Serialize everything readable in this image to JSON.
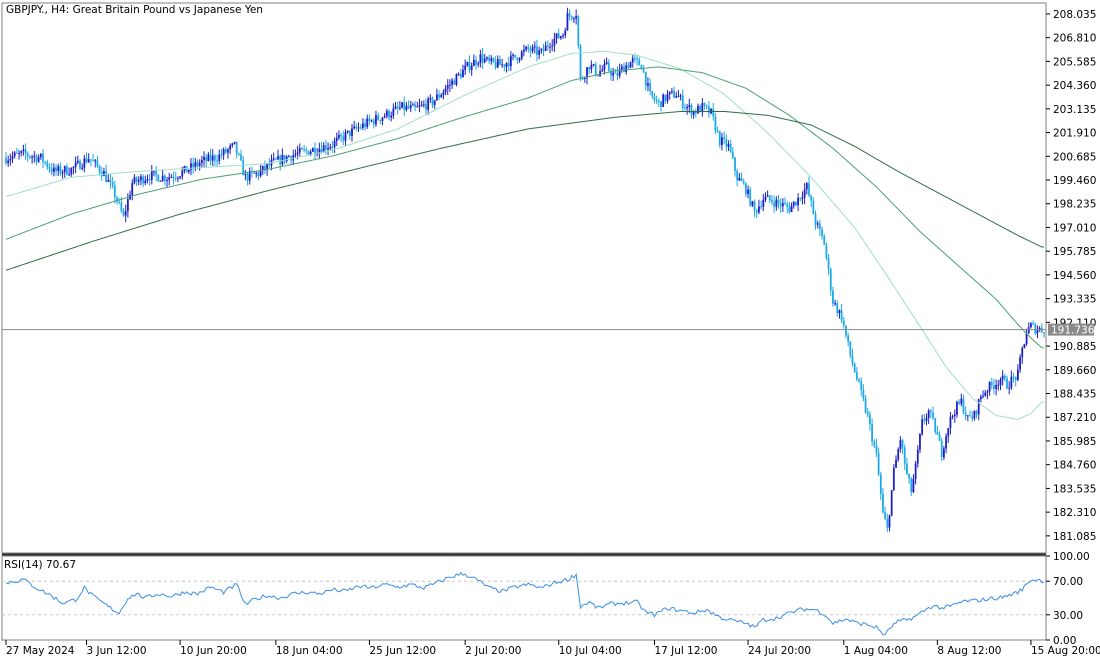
{
  "header": {
    "symbol_line": "GBPJPY., H4:  Great Britain Pound vs Japanese Yen"
  },
  "colors": {
    "bull": "#1e1ec8",
    "bear": "#1ea8e6",
    "ma_fast": "#9fe0c4",
    "ma_mid": "#4aa072",
    "ma_slow": "#2e6e4a",
    "rsi": "#3a8ee6",
    "grid": "#c8c8c8",
    "frame": "#808080",
    "text": "#000000",
    "price_tag_bg": "#8a8a8a"
  },
  "chart_data": [
    {
      "type": "candlestick",
      "symbol": "GBPJPY.",
      "timeframe": "H4",
      "title": "Great Britain Pound vs Japanese Yen",
      "current_price": 191.736,
      "current_price_label": "191.736",
      "ylim": [
        180.2,
        208.6
      ],
      "y_ticks": [
        {
          "v": 208.035,
          "label": "208.035"
        },
        {
          "v": 206.81,
          "label": "206.810"
        },
        {
          "v": 205.585,
          "label": "205.585"
        },
        {
          "v": 204.36,
          "label": "204.360"
        },
        {
          "v": 203.135,
          "label": "203.135"
        },
        {
          "v": 201.91,
          "label": "201.910"
        },
        {
          "v": 200.685,
          "label": "200.685"
        },
        {
          "v": 199.46,
          "label": "199.460"
        },
        {
          "v": 198.235,
          "label": "198.235"
        },
        {
          "v": 197.01,
          "label": "197.010"
        },
        {
          "v": 195.785,
          "label": "195.785"
        },
        {
          "v": 194.56,
          "label": "194.560"
        },
        {
          "v": 193.335,
          "label": "193.335"
        },
        {
          "v": 192.11,
          "label": "192.110"
        },
        {
          "v": 190.885,
          "label": "190.885"
        },
        {
          "v": 189.66,
          "label": "189.660"
        },
        {
          "v": 188.435,
          "label": "188.435"
        },
        {
          "v": 187.21,
          "label": "187.210"
        },
        {
          "v": 185.985,
          "label": "185.985"
        },
        {
          "v": 184.76,
          "label": "184.760"
        },
        {
          "v": 183.535,
          "label": "183.535"
        },
        {
          "v": 182.31,
          "label": "182.310"
        },
        {
          "v": 181.085,
          "label": "181.085"
        }
      ],
      "x_labels": [
        {
          "i": 0,
          "label": "27 May 2024"
        },
        {
          "i": 37,
          "label": "3 Jun 12:00"
        },
        {
          "i": 80,
          "label": "10 Jun 20:00"
        },
        {
          "i": 124,
          "label": "18 Jun 04:00"
        },
        {
          "i": 167,
          "label": "25 Jun 12:00"
        },
        {
          "i": 211,
          "label": "2 Jul 20:00"
        },
        {
          "i": 254,
          "label": "10 Jul 04:00"
        },
        {
          "i": 298,
          "label": "17 Jul 12:00"
        },
        {
          "i": 341,
          "label": "24 Jul 20:00"
        },
        {
          "i": 385,
          "label": "1 Aug 04:00"
        },
        {
          "i": 428,
          "label": "8 Aug 12:00"
        },
        {
          "i": 471,
          "label": "15 Aug 20:00"
        }
      ],
      "close_path": [
        [
          0,
          200.6
        ],
        [
          8,
          200.8
        ],
        [
          16,
          200.6
        ],
        [
          22,
          199.9
        ],
        [
          30,
          200.0
        ],
        [
          38,
          200.6
        ],
        [
          45,
          199.8
        ],
        [
          50,
          198.7
        ],
        [
          54,
          197.5
        ],
        [
          58,
          199.3
        ],
        [
          66,
          199.7
        ],
        [
          74,
          199.6
        ],
        [
          82,
          199.9
        ],
        [
          90,
          200.4
        ],
        [
          98,
          200.7
        ],
        [
          105,
          201.2
        ],
        [
          110,
          199.6
        ],
        [
          116,
          199.8
        ],
        [
          122,
          200.3
        ],
        [
          130,
          200.7
        ],
        [
          140,
          201.0
        ],
        [
          150,
          201.3
        ],
        [
          158,
          201.9
        ],
        [
          166,
          202.4
        ],
        [
          174,
          202.8
        ],
        [
          182,
          203.2
        ],
        [
          188,
          203.1
        ],
        [
          196,
          203.5
        ],
        [
          204,
          204.4
        ],
        [
          212,
          205.3
        ],
        [
          218,
          205.8
        ],
        [
          222,
          205.5
        ],
        [
          228,
          205.4
        ],
        [
          234,
          205.8
        ],
        [
          240,
          206.2
        ],
        [
          246,
          206.0
        ],
        [
          250,
          206.6
        ],
        [
          256,
          207.0
        ],
        [
          258,
          207.9
        ],
        [
          262,
          208.1
        ],
        [
          264,
          204.6
        ],
        [
          268,
          205.4
        ],
        [
          272,
          205.0
        ],
        [
          276,
          205.3
        ],
        [
          280,
          204.8
        ],
        [
          284,
          205.3
        ],
        [
          288,
          205.6
        ],
        [
          292,
          205.4
        ],
        [
          296,
          203.8
        ],
        [
          300,
          203.4
        ],
        [
          304,
          203.8
        ],
        [
          308,
          203.9
        ],
        [
          312,
          203.3
        ],
        [
          316,
          203.0
        ],
        [
          320,
          203.2
        ],
        [
          324,
          202.9
        ],
        [
          328,
          201.5
        ],
        [
          332,
          201.2
        ],
        [
          336,
          199.6
        ],
        [
          340,
          199.0
        ],
        [
          344,
          197.8
        ],
        [
          348,
          198.5
        ],
        [
          352,
          198.4
        ],
        [
          356,
          198.2
        ],
        [
          360,
          198.0
        ],
        [
          364,
          198.5
        ],
        [
          368,
          199.1
        ],
        [
          372,
          197.3
        ],
        [
          376,
          196.2
        ],
        [
          380,
          193.2
        ],
        [
          384,
          192.4
        ],
        [
          388,
          190.4
        ],
        [
          392,
          188.8
        ],
        [
          396,
          187.2
        ],
        [
          400,
          185.2
        ],
        [
          403,
          182.2
        ],
        [
          405,
          181.4
        ],
        [
          408,
          184.4
        ],
        [
          411,
          186.1
        ],
        [
          414,
          184.2
        ],
        [
          416,
          183.4
        ],
        [
          418,
          184.6
        ],
        [
          421,
          186.9
        ],
        [
          424,
          187.5
        ],
        [
          427,
          186.6
        ],
        [
          430,
          185.4
        ],
        [
          433,
          186.8
        ],
        [
          436,
          187.6
        ],
        [
          439,
          188.0
        ],
        [
          442,
          187.1
        ],
        [
          445,
          187.3
        ],
        [
          448,
          188.3
        ],
        [
          451,
          188.7
        ],
        [
          454,
          188.9
        ],
        [
          457,
          189.2
        ],
        [
          460,
          188.9
        ],
        [
          463,
          189.2
        ],
        [
          465,
          189.4
        ],
        [
          467,
          190.7
        ],
        [
          469,
          191.6
        ],
        [
          471,
          191.9
        ],
        [
          473,
          191.8
        ],
        [
          476,
          191.736
        ]
      ],
      "moving_averages": [
        {
          "role": "fast",
          "points": [
            [
              0,
              198.6
            ],
            [
              30,
              199.6
            ],
            [
              60,
              199.9
            ],
            [
              90,
              200.1
            ],
            [
              120,
              200.3
            ],
            [
              150,
              201.0
            ],
            [
              180,
              202.1
            ],
            [
              210,
              203.8
            ],
            [
              240,
              205.3
            ],
            [
              260,
              206.0
            ],
            [
              275,
              206.1
            ],
            [
              290,
              205.9
            ],
            [
              310,
              205.2
            ],
            [
              330,
              203.9
            ],
            [
              350,
              201.9
            ],
            [
              370,
              199.6
            ],
            [
              390,
              197.0
            ],
            [
              405,
              194.5
            ],
            [
              420,
              191.9
            ],
            [
              432,
              189.8
            ],
            [
              444,
              188.2
            ],
            [
              455,
              187.3
            ],
            [
              465,
              187.1
            ],
            [
              471,
              187.4
            ],
            [
              476,
              188.0
            ]
          ]
        },
        {
          "role": "mid",
          "points": [
            [
              0,
              196.4
            ],
            [
              30,
              197.7
            ],
            [
              60,
              198.7
            ],
            [
              90,
              199.5
            ],
            [
              120,
              200.0
            ],
            [
              150,
              200.7
            ],
            [
              180,
              201.6
            ],
            [
              210,
              202.7
            ],
            [
              240,
              203.7
            ],
            [
              260,
              204.6
            ],
            [
              280,
              205.1
            ],
            [
              300,
              205.3
            ],
            [
              320,
              205.0
            ],
            [
              340,
              204.2
            ],
            [
              360,
              202.8
            ],
            [
              380,
              201.1
            ],
            [
              400,
              199.1
            ],
            [
              420,
              196.8
            ],
            [
              440,
              194.8
            ],
            [
              455,
              193.3
            ],
            [
              465,
              192.0
            ],
            [
              471,
              191.3
            ],
            [
              476,
              190.8
            ]
          ]
        },
        {
          "role": "slow",
          "points": [
            [
              0,
              194.8
            ],
            [
              40,
              196.3
            ],
            [
              80,
              197.7
            ],
            [
              120,
              198.9
            ],
            [
              160,
              200.0
            ],
            [
              200,
              201.1
            ],
            [
              240,
              202.1
            ],
            [
              280,
              202.7
            ],
            [
              310,
              203.0
            ],
            [
              330,
              203.0
            ],
            [
              350,
              202.8
            ],
            [
              370,
              202.3
            ],
            [
              390,
              201.2
            ],
            [
              410,
              199.9
            ],
            [
              430,
              198.7
            ],
            [
              450,
              197.5
            ],
            [
              465,
              196.6
            ],
            [
              476,
              196.0
            ]
          ]
        }
      ]
    },
    {
      "type": "line",
      "name": "RSI(14)",
      "panel_label": "RSI(14) 70.67",
      "ylim": [
        0,
        100
      ],
      "y_ticks": [
        {
          "v": 100,
          "label": "100.00"
        },
        {
          "v": 70,
          "label": "70.00"
        },
        {
          "v": 30,
          "label": "30.00"
        },
        {
          "v": 0,
          "label": "0.00"
        }
      ],
      "levels": [
        70,
        30
      ],
      "points": [
        [
          0,
          68
        ],
        [
          8,
          72
        ],
        [
          14,
          62
        ],
        [
          20,
          54
        ],
        [
          26,
          44
        ],
        [
          32,
          48
        ],
        [
          36,
          62
        ],
        [
          40,
          52
        ],
        [
          44,
          45
        ],
        [
          48,
          38
        ],
        [
          52,
          32
        ],
        [
          56,
          50
        ],
        [
          60,
          55
        ],
        [
          64,
          50
        ],
        [
          70,
          55
        ],
        [
          76,
          52
        ],
        [
          82,
          57
        ],
        [
          88,
          55
        ],
        [
          94,
          63
        ],
        [
          100,
          57
        ],
        [
          106,
          66
        ],
        [
          110,
          42
        ],
        [
          114,
          48
        ],
        [
          120,
          53
        ],
        [
          126,
          50
        ],
        [
          132,
          55
        ],
        [
          138,
          57
        ],
        [
          144,
          55
        ],
        [
          150,
          60
        ],
        [
          156,
          58
        ],
        [
          162,
          64
        ],
        [
          168,
          62
        ],
        [
          174,
          66
        ],
        [
          180,
          63
        ],
        [
          186,
          66
        ],
        [
          192,
          62
        ],
        [
          198,
          68
        ],
        [
          204,
          75
        ],
        [
          210,
          79
        ],
        [
          214,
          75
        ],
        [
          218,
          69
        ],
        [
          222,
          62
        ],
        [
          228,
          58
        ],
        [
          234,
          63
        ],
        [
          240,
          66
        ],
        [
          246,
          62
        ],
        [
          252,
          68
        ],
        [
          258,
          72
        ],
        [
          262,
          78
        ],
        [
          264,
          40
        ],
        [
          268,
          45
        ],
        [
          272,
          38
        ],
        [
          278,
          43
        ],
        [
          284,
          44
        ],
        [
          290,
          45
        ],
        [
          294,
          33
        ],
        [
          298,
          30
        ],
        [
          304,
          38
        ],
        [
          310,
          35
        ],
        [
          316,
          32
        ],
        [
          322,
          36
        ],
        [
          328,
          27
        ],
        [
          334,
          23
        ],
        [
          340,
          20
        ],
        [
          344,
          15
        ],
        [
          348,
          24
        ],
        [
          354,
          26
        ],
        [
          360,
          32
        ],
        [
          366,
          37
        ],
        [
          372,
          36
        ],
        [
          376,
          31
        ],
        [
          380,
          20
        ],
        [
          386,
          25
        ],
        [
          390,
          21
        ],
        [
          396,
          18
        ],
        [
          400,
          15
        ],
        [
          404,
          5
        ],
        [
          406,
          14
        ],
        [
          410,
          22
        ],
        [
          414,
          24
        ],
        [
          418,
          28
        ],
        [
          422,
          35
        ],
        [
          426,
          41
        ],
        [
          430,
          38
        ],
        [
          434,
          40
        ],
        [
          440,
          46
        ],
        [
          446,
          47
        ],
        [
          452,
          49
        ],
        [
          458,
          51
        ],
        [
          464,
          56
        ],
        [
          467,
          60
        ],
        [
          470,
          70
        ],
        [
          473,
          72
        ],
        [
          476,
          70.67
        ]
      ]
    }
  ]
}
